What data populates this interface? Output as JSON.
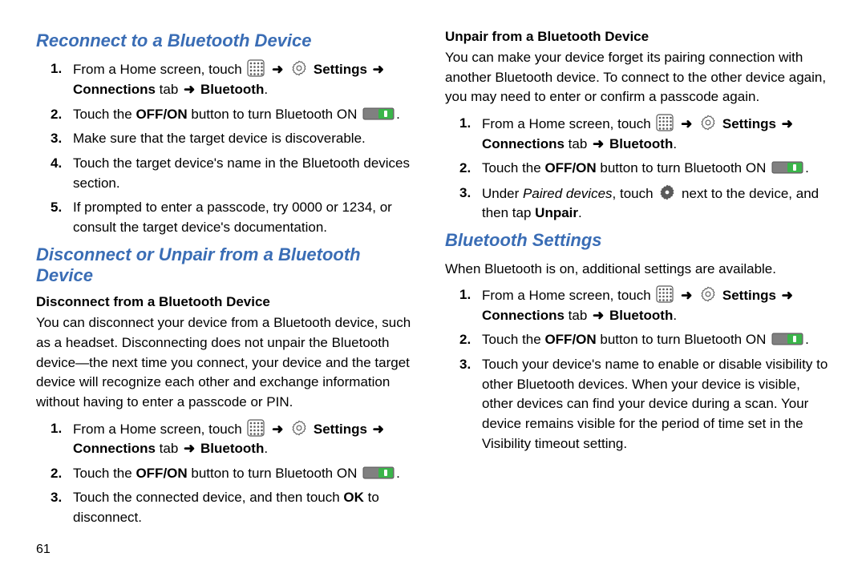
{
  "pageNumber": "61",
  "arrowGlyph": "➜",
  "colors": {
    "headingBlue": "#3a6db5",
    "text": "#000000",
    "toggleTrackOn": "#3ab54a",
    "toggleTrackBg": "#808080",
    "iconOutline": "#5a5a5a",
    "gearFill": "#ffffff"
  },
  "left": {
    "h1": "Reconnect to a Bluetooth Device",
    "steps1": {
      "s1": {
        "pre": "From a Home screen, touch ",
        "settings": "Settings",
        "connections": "Connections",
        "tab": " tab ",
        "bluetooth": "Bluetooth",
        "period": "."
      },
      "s2": {
        "pre": "Touch the ",
        "offon": "OFF/ON",
        "mid": " button to turn Bluetooth ON ",
        "period": "."
      },
      "s3": "Make sure that the target device is discoverable.",
      "s4": "Touch the target device's name in the Bluetooth devices section.",
      "s5": "If prompted to enter a passcode, try 0000 or 1234, or consult the target device's documentation."
    },
    "h2": "Disconnect or Unpair from a Bluetooth Device",
    "sub1": "Disconnect from a Bluetooth Device",
    "p1": "You can disconnect your device from a Bluetooth device, such as a headset. Disconnecting does not unpair the Bluetooth device—the next time you connect, your device and the target device will recognize each other and exchange information without having to enter a passcode or PIN.",
    "steps2": {
      "s1": {
        "pre": "From a Home screen, touch ",
        "settings": "Settings",
        "connections": "Connections",
        "tab": " tab ",
        "bluetooth": "Bluetooth",
        "period": "."
      },
      "s2": {
        "pre": "Touch the ",
        "offon": "OFF/ON",
        "mid": " button to turn Bluetooth ON ",
        "period": "."
      },
      "s3": {
        "pre": "Touch the connected device, and then touch ",
        "ok": "OK",
        "post": " to disconnect."
      }
    }
  },
  "right": {
    "sub1": "Unpair from a Bluetooth Device",
    "p1": "You can make your device forget its pairing connection with another Bluetooth device. To connect to the other device again, you may need to enter or confirm a passcode again.",
    "steps1": {
      "s1": {
        "pre": "From a Home screen, touch ",
        "settings": "Settings",
        "connections": "Connections",
        "tab": " tab ",
        "bluetooth": "Bluetooth",
        "period": "."
      },
      "s2": {
        "pre": "Touch the ",
        "offon": "OFF/ON",
        "mid": " button to turn Bluetooth ON ",
        "period": "."
      },
      "s3": {
        "pre": "Under ",
        "paired": "Paired devices",
        "mid": ", touch ",
        "post": " next to the device, and then tap ",
        "unpair": "Unpair",
        "period": "."
      }
    },
    "h2": "Bluetooth Settings",
    "p2": "When Bluetooth is on, additional settings are available.",
    "steps2": {
      "s1": {
        "pre": "From a Home screen, touch ",
        "settings": "Settings",
        "connections": "Connections",
        "tab": " tab ",
        "bluetooth": "Bluetooth",
        "period": "."
      },
      "s2": {
        "pre": "Touch the ",
        "offon": "OFF/ON",
        "mid": " button to turn Bluetooth ON ",
        "period": "."
      },
      "s3": "Touch your device's name to enable or disable visibility to other Bluetooth devices. When your device is visible, other devices can find your device during a scan. Your device remains visible for the period of time set in the Visibility timeout setting."
    }
  }
}
